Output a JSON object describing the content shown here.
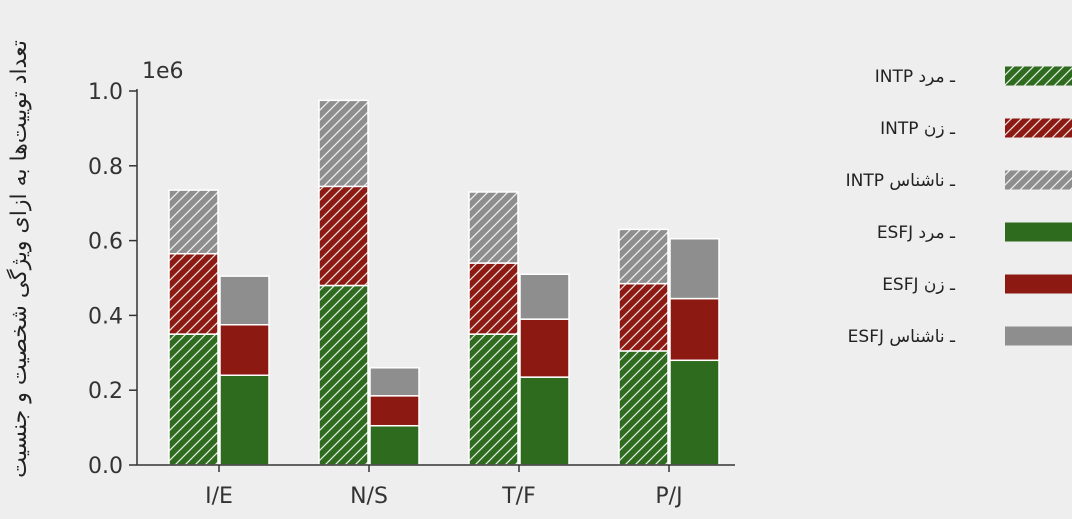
{
  "chart_data": {
    "type": "bar",
    "stacked": true,
    "grouped": true,
    "categories": [
      "I/E",
      "N/S",
      "T/F",
      "P/J"
    ],
    "ylabel": "تعداد توییت‌ها به ازای ویژگی شخصیت و جنسیت",
    "y_scale_label": "1e6",
    "ylim": [
      0,
      1.0
    ],
    "yticks": [
      "0.0",
      "0.2",
      "0.4",
      "0.6",
      "0.8",
      "1.0"
    ],
    "grid": false,
    "legend_position": "right",
    "groups": [
      {
        "name": "INTP",
        "hatched": true,
        "segments": [
          {
            "name": "INTP ـ مرد",
            "color": "#2e6b1e",
            "values": [
              0.35,
              0.48,
              0.35,
              0.305
            ]
          },
          {
            "name": "INTP ـ زن",
            "color": "#8c1a12",
            "values": [
              0.215,
              0.265,
              0.19,
              0.18
            ]
          },
          {
            "name": "INTP ـ ناشناس",
            "color": "#8e8e8e",
            "values": [
              0.17,
              0.23,
              0.19,
              0.145
            ]
          }
        ]
      },
      {
        "name": "ESFJ",
        "hatched": false,
        "segments": [
          {
            "name": "ESFJ ـ مرد",
            "color": "#2e6b1e",
            "values": [
              0.24,
              0.105,
              0.235,
              0.28
            ]
          },
          {
            "name": "ESFJ ـ زن",
            "color": "#8c1a12",
            "values": [
              0.135,
              0.08,
              0.155,
              0.165
            ]
          },
          {
            "name": "ESFJ ـ ناشناس",
            "color": "#8e8e8e",
            "values": [
              0.13,
              0.075,
              0.12,
              0.16
            ]
          }
        ]
      }
    ],
    "legend": [
      {
        "label": "INTP ـ مرد",
        "color": "#2e6b1e",
        "hatched": true
      },
      {
        "label": "INTP ـ زن",
        "color": "#8c1a12",
        "hatched": true
      },
      {
        "label": "INTP ـ ناشناس",
        "color": "#8e8e8e",
        "hatched": true
      },
      {
        "label": "ESFJ ـ مرد",
        "color": "#2e6b1e",
        "hatched": false
      },
      {
        "label": "ESFJ ـ زن",
        "color": "#8c1a12",
        "hatched": false
      },
      {
        "label": "ESFJ ـ ناشناس",
        "color": "#8e8e8e",
        "hatched": false
      }
    ]
  }
}
